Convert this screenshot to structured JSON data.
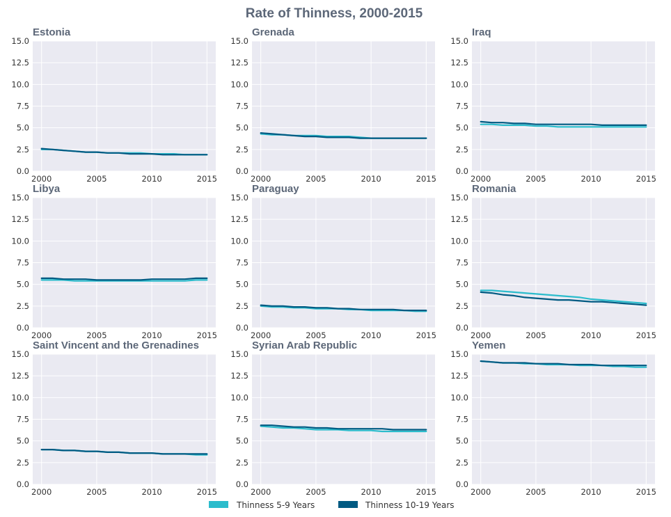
{
  "figure": {
    "title": "Rate of Thinness, 2000-2015"
  },
  "colors": {
    "s1": "#2bbccc",
    "s2": "#005a82",
    "panel_bg": "#eaeaf2",
    "grid": "#ffffff"
  },
  "legend": {
    "items": [
      {
        "label": "Thinness 5-9 Years"
      },
      {
        "label": "Thinness 10-19 Years"
      }
    ]
  },
  "chart_data": [
    {
      "type": "line",
      "title": "Estonia",
      "x": [
        2000,
        2001,
        2002,
        2003,
        2004,
        2005,
        2006,
        2007,
        2008,
        2009,
        2010,
        2011,
        2012,
        2013,
        2014,
        2015
      ],
      "xlim": [
        1999.2,
        2015.8
      ],
      "xticks": [
        2000,
        2005,
        2010,
        2015
      ],
      "ylim": [
        0,
        15
      ],
      "yticks": [
        "0.0",
        "2.5",
        "5.0",
        "7.5",
        "10.0",
        "12.5",
        "15.0"
      ],
      "grid": true,
      "series": [
        {
          "name": "Thinness 5-9 Years",
          "values": [
            2.5,
            2.5,
            2.4,
            2.3,
            2.2,
            2.2,
            2.1,
            2.1,
            2.1,
            2.1,
            2.0,
            2.0,
            2.0,
            1.9,
            1.9,
            1.9
          ]
        },
        {
          "name": "Thinness 10-19 Years",
          "values": [
            2.6,
            2.5,
            2.4,
            2.3,
            2.2,
            2.2,
            2.1,
            2.1,
            2.0,
            2.0,
            2.0,
            1.9,
            1.9,
            1.9,
            1.9,
            1.9
          ]
        }
      ]
    },
    {
      "type": "line",
      "title": "Grenada",
      "x": [
        2000,
        2001,
        2002,
        2003,
        2004,
        2005,
        2006,
        2007,
        2008,
        2009,
        2010,
        2011,
        2012,
        2013,
        2014,
        2015
      ],
      "xlim": [
        1999.2,
        2015.8
      ],
      "xticks": [
        2000,
        2005,
        2010,
        2015
      ],
      "ylim": [
        0,
        15
      ],
      "yticks": [
        "0.0",
        "2.5",
        "5.0",
        "7.5",
        "10.0",
        "12.5",
        "15.0"
      ],
      "grid": true,
      "series": [
        {
          "name": "Thinness 5-9 Years",
          "values": [
            4.3,
            4.2,
            4.2,
            4.1,
            4.1,
            4.1,
            4.0,
            4.0,
            4.0,
            3.9,
            3.8,
            3.8,
            3.8,
            3.8,
            3.8,
            3.8
          ]
        },
        {
          "name": "Thinness 10-19 Years",
          "values": [
            4.4,
            4.3,
            4.2,
            4.1,
            4.0,
            4.0,
            3.9,
            3.9,
            3.9,
            3.8,
            3.8,
            3.8,
            3.8,
            3.8,
            3.8,
            3.8
          ]
        }
      ]
    },
    {
      "type": "line",
      "title": "Iraq",
      "x": [
        2000,
        2001,
        2002,
        2003,
        2004,
        2005,
        2006,
        2007,
        2008,
        2009,
        2010,
        2011,
        2012,
        2013,
        2014,
        2015
      ],
      "xlim": [
        1999.2,
        2015.8
      ],
      "xticks": [
        2000,
        2005,
        2010,
        2015
      ],
      "ylim": [
        0,
        15
      ],
      "yticks": [
        "0.0",
        "2.5",
        "5.0",
        "7.5",
        "10.0",
        "12.5",
        "15.0"
      ],
      "grid": true,
      "series": [
        {
          "name": "Thinness 5-9 Years",
          "values": [
            5.4,
            5.4,
            5.3,
            5.3,
            5.3,
            5.2,
            5.2,
            5.1,
            5.1,
            5.1,
            5.1,
            5.1,
            5.1,
            5.1,
            5.1,
            5.1
          ]
        },
        {
          "name": "Thinness 10-19 Years",
          "values": [
            5.7,
            5.6,
            5.6,
            5.5,
            5.5,
            5.4,
            5.4,
            5.4,
            5.4,
            5.4,
            5.4,
            5.3,
            5.3,
            5.3,
            5.3,
            5.3
          ]
        }
      ]
    },
    {
      "type": "line",
      "title": "Libya",
      "x": [
        2000,
        2001,
        2002,
        2003,
        2004,
        2005,
        2006,
        2007,
        2008,
        2009,
        2010,
        2011,
        2012,
        2013,
        2014,
        2015
      ],
      "xlim": [
        1999.2,
        2015.8
      ],
      "xticks": [
        2000,
        2005,
        2010,
        2015
      ],
      "ylim": [
        0,
        15
      ],
      "yticks": [
        "0.0",
        "2.5",
        "5.0",
        "7.5",
        "10.0",
        "12.5",
        "15.0"
      ],
      "grid": true,
      "series": [
        {
          "name": "Thinness 5-9 Years",
          "values": [
            5.5,
            5.5,
            5.5,
            5.4,
            5.4,
            5.4,
            5.4,
            5.4,
            5.4,
            5.4,
            5.4,
            5.4,
            5.4,
            5.4,
            5.5,
            5.5
          ]
        },
        {
          "name": "Thinness 10-19 Years",
          "values": [
            5.7,
            5.7,
            5.6,
            5.6,
            5.6,
            5.5,
            5.5,
            5.5,
            5.5,
            5.5,
            5.6,
            5.6,
            5.6,
            5.6,
            5.7,
            5.7
          ]
        }
      ]
    },
    {
      "type": "line",
      "title": "Paraguay",
      "x": [
        2000,
        2001,
        2002,
        2003,
        2004,
        2005,
        2006,
        2007,
        2008,
        2009,
        2010,
        2011,
        2012,
        2013,
        2014,
        2015
      ],
      "xlim": [
        1999.2,
        2015.8
      ],
      "xticks": [
        2000,
        2005,
        2010,
        2015
      ],
      "ylim": [
        0,
        15
      ],
      "yticks": [
        "0.0",
        "2.5",
        "5.0",
        "7.5",
        "10.0",
        "12.5",
        "15.0"
      ],
      "grid": true,
      "series": [
        {
          "name": "Thinness 5-9 Years",
          "values": [
            2.5,
            2.4,
            2.4,
            2.3,
            2.3,
            2.2,
            2.2,
            2.2,
            2.1,
            2.1,
            2.0,
            2.0,
            2.0,
            2.0,
            1.9,
            1.9
          ]
        },
        {
          "name": "Thinness 10-19 Years",
          "values": [
            2.6,
            2.5,
            2.5,
            2.4,
            2.4,
            2.3,
            2.3,
            2.2,
            2.2,
            2.1,
            2.1,
            2.1,
            2.1,
            2.0,
            2.0,
            2.0
          ]
        }
      ]
    },
    {
      "type": "line",
      "title": "Romania",
      "x": [
        2000,
        2001,
        2002,
        2003,
        2004,
        2005,
        2006,
        2007,
        2008,
        2009,
        2010,
        2011,
        2012,
        2013,
        2014,
        2015
      ],
      "xlim": [
        1999.2,
        2015.8
      ],
      "xticks": [
        2000,
        2005,
        2010,
        2015
      ],
      "ylim": [
        0,
        15
      ],
      "yticks": [
        "0.0",
        "2.5",
        "5.0",
        "7.5",
        "10.0",
        "12.5",
        "15.0"
      ],
      "grid": true,
      "series": [
        {
          "name": "Thinness 5-9 Years",
          "values": [
            4.3,
            4.3,
            4.2,
            4.1,
            4.0,
            3.9,
            3.8,
            3.7,
            3.6,
            3.5,
            3.3,
            3.2,
            3.1,
            3.0,
            2.9,
            2.8
          ]
        },
        {
          "name": "Thinness 10-19 Years",
          "values": [
            4.1,
            4.0,
            3.8,
            3.7,
            3.5,
            3.4,
            3.3,
            3.2,
            3.2,
            3.1,
            3.0,
            3.0,
            2.9,
            2.8,
            2.7,
            2.6
          ]
        }
      ]
    },
    {
      "type": "line",
      "title": "Saint Vincent and the Grenadines",
      "x": [
        2000,
        2001,
        2002,
        2003,
        2004,
        2005,
        2006,
        2007,
        2008,
        2009,
        2010,
        2011,
        2012,
        2013,
        2014,
        2015
      ],
      "xlim": [
        1999.2,
        2015.8
      ],
      "xticks": [
        2000,
        2005,
        2010,
        2015
      ],
      "ylim": [
        0,
        15
      ],
      "yticks": [
        "0.0",
        "2.5",
        "5.0",
        "7.5",
        "10.0",
        "12.5",
        "15.0"
      ],
      "grid": true,
      "series": [
        {
          "name": "Thinness 5-9 Years",
          "values": [
            4.0,
            4.0,
            3.9,
            3.9,
            3.8,
            3.8,
            3.7,
            3.7,
            3.6,
            3.6,
            3.6,
            3.5,
            3.5,
            3.5,
            3.4,
            3.4
          ]
        },
        {
          "name": "Thinness 10-19 Years",
          "values": [
            4.0,
            4.0,
            3.9,
            3.9,
            3.8,
            3.8,
            3.7,
            3.7,
            3.6,
            3.6,
            3.6,
            3.5,
            3.5,
            3.5,
            3.5,
            3.5
          ]
        }
      ]
    },
    {
      "type": "line",
      "title": "Syrian Arab Republic",
      "x": [
        2000,
        2001,
        2002,
        2003,
        2004,
        2005,
        2006,
        2007,
        2008,
        2009,
        2010,
        2011,
        2012,
        2013,
        2014,
        2015
      ],
      "xlim": [
        1999.2,
        2015.8
      ],
      "xticks": [
        2000,
        2005,
        2010,
        2015
      ],
      "ylim": [
        0,
        15
      ],
      "yticks": [
        "0.0",
        "2.5",
        "5.0",
        "7.5",
        "10.0",
        "12.5",
        "15.0"
      ],
      "grid": true,
      "series": [
        {
          "name": "Thinness 5-9 Years",
          "values": [
            6.7,
            6.6,
            6.5,
            6.5,
            6.4,
            6.3,
            6.3,
            6.3,
            6.2,
            6.2,
            6.2,
            6.1,
            6.1,
            6.1,
            6.1,
            6.1
          ]
        },
        {
          "name": "Thinness 10-19 Years",
          "values": [
            6.8,
            6.8,
            6.7,
            6.6,
            6.6,
            6.5,
            6.5,
            6.4,
            6.4,
            6.4,
            6.4,
            6.4,
            6.3,
            6.3,
            6.3,
            6.3
          ]
        }
      ]
    },
    {
      "type": "line",
      "title": "Yemen",
      "x": [
        2000,
        2001,
        2002,
        2003,
        2004,
        2005,
        2006,
        2007,
        2008,
        2009,
        2010,
        2011,
        2012,
        2013,
        2014,
        2015
      ],
      "xlim": [
        1999.2,
        2015.8
      ],
      "xticks": [
        2000,
        2005,
        2010,
        2015
      ],
      "ylim": [
        0,
        15
      ],
      "yticks": [
        "0.0",
        "2.5",
        "5.0",
        "7.5",
        "10.0",
        "12.5",
        "15.0"
      ],
      "grid": true,
      "series": [
        {
          "name": "Thinness 5-9 Years",
          "values": [
            14.2,
            14.1,
            14.0,
            14.0,
            13.9,
            13.9,
            13.8,
            13.8,
            13.8,
            13.7,
            13.7,
            13.7,
            13.6,
            13.6,
            13.5,
            13.5
          ]
        },
        {
          "name": "Thinness 10-19 Years",
          "values": [
            14.2,
            14.1,
            14.0,
            14.0,
            14.0,
            13.9,
            13.9,
            13.9,
            13.8,
            13.8,
            13.8,
            13.7,
            13.7,
            13.7,
            13.7,
            13.7
          ]
        }
      ]
    }
  ]
}
